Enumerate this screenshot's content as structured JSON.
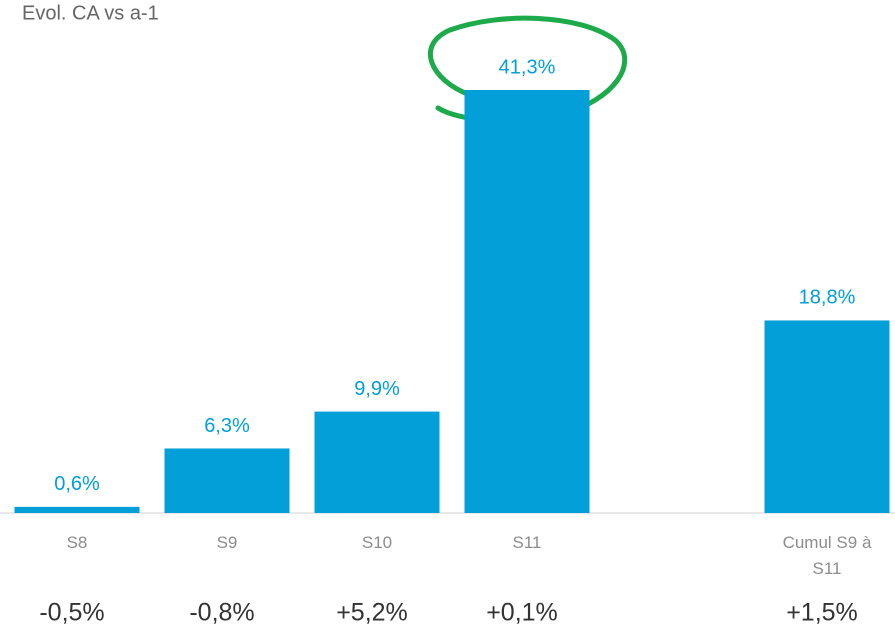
{
  "chart_data": {
    "type": "bar",
    "title": "Evol. CA vs a-1",
    "categories": [
      "S8",
      "S9",
      "S10",
      "S11",
      null,
      "Cumul S9 à S11"
    ],
    "values": [
      0.6,
      6.3,
      9.9,
      41.3,
      null,
      18.8
    ],
    "value_labels": [
      "0,6%",
      "6,3%",
      "9,9%",
      "41,3%",
      null,
      "18,8%"
    ],
    "secondary_values": [
      -0.5,
      -0.8,
      5.2,
      0.1,
      null,
      1.5
    ],
    "secondary_value_labels": [
      "-0,5%",
      "-0,8%",
      "+5,2%",
      "+0,1%",
      null,
      "+1,5%"
    ],
    "color": "#029fd9"
  }
}
